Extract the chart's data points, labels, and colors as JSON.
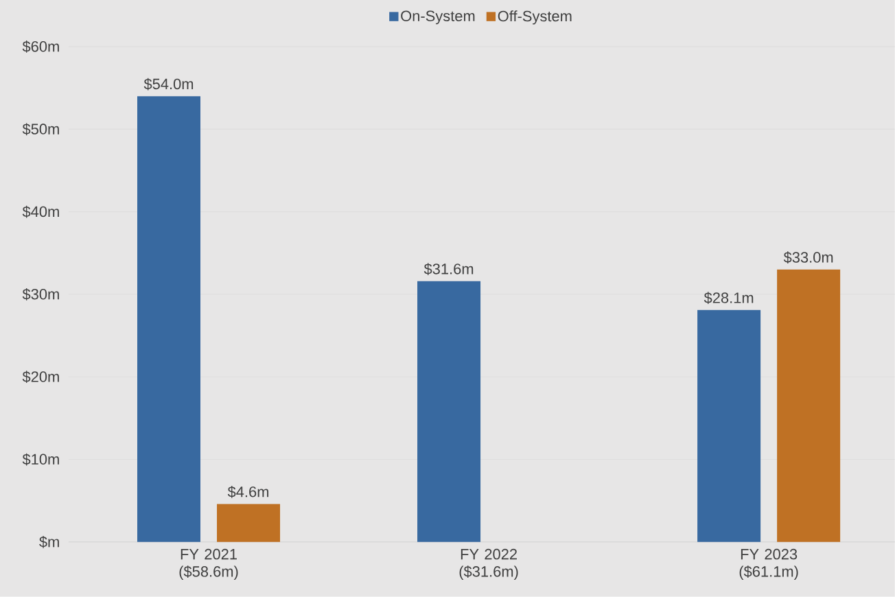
{
  "chart_data": {
    "type": "bar",
    "categories": [
      "FY 2021 ($58.6m)",
      "FY 2022 ($31.6m)",
      "FY 2023 ($61.1m)"
    ],
    "series": [
      {
        "name": "On-System",
        "color": "#3869a0",
        "values": [
          54.0,
          31.6,
          28.1
        ],
        "value_labels": [
          "$54.0m",
          "$31.6m",
          "$28.1m"
        ]
      },
      {
        "name": "Off-System",
        "color": "#bf7124",
        "values": [
          4.6,
          null,
          33.0
        ],
        "value_labels": [
          "$4.6m",
          null,
          "$33.0m"
        ]
      }
    ],
    "ylim": [
      0,
      60
    ],
    "yticks": [
      {
        "value": 0,
        "label": "$m"
      },
      {
        "value": 10,
        "label": "$10m"
      },
      {
        "value": 20,
        "label": "$20m"
      },
      {
        "value": 30,
        "label": "$30m"
      },
      {
        "value": 40,
        "label": "$40m"
      },
      {
        "value": 50,
        "label": "$50m"
      },
      {
        "value": 60,
        "label": "$60m"
      }
    ],
    "grid": "y",
    "legend": "top"
  }
}
